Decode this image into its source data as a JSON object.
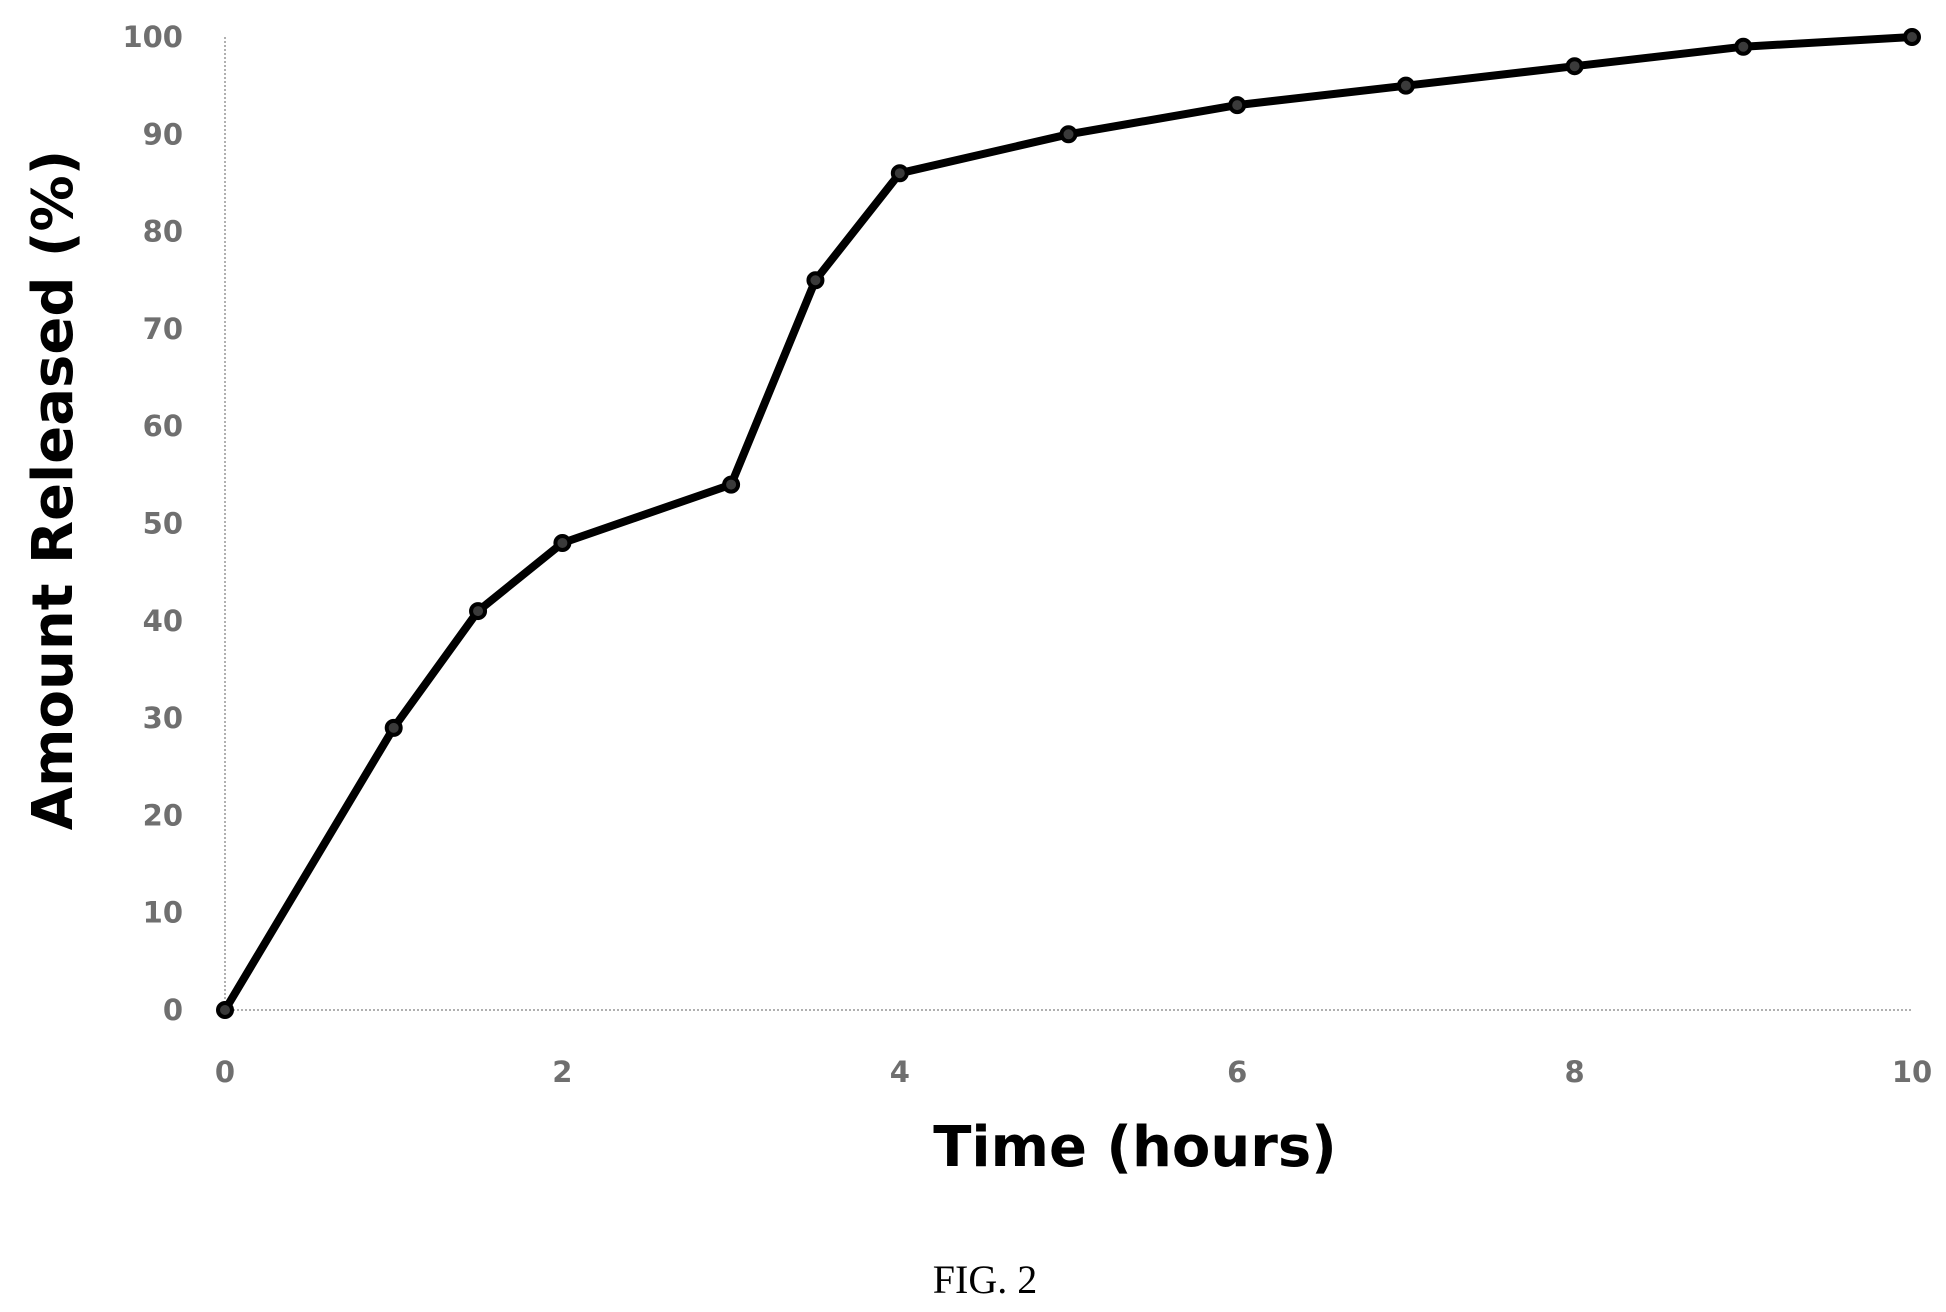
{
  "chart_data": {
    "type": "line",
    "title": "",
    "xlabel": "Time (hours)",
    "ylabel": "Amount Released (%)",
    "xlim": [
      0,
      10
    ],
    "ylim": [
      0,
      100
    ],
    "x_ticks": [
      "0",
      "2",
      "4",
      "6",
      "8",
      "10"
    ],
    "y_ticks": [
      "0",
      "10",
      "20",
      "30",
      "40",
      "50",
      "60",
      "70",
      "80",
      "90",
      "100"
    ],
    "grid": false,
    "legend": "none",
    "line_color": "#000000",
    "series": [
      {
        "x": [
          0,
          1,
          1.5,
          2,
          3,
          3.5,
          4,
          5,
          6,
          7,
          8,
          9,
          10
        ],
        "y": [
          0,
          29,
          41,
          48,
          54,
          75,
          86,
          90,
          93,
          95,
          97,
          99,
          100
        ]
      }
    ]
  },
  "figure": {
    "caption": "FIG. 2"
  }
}
